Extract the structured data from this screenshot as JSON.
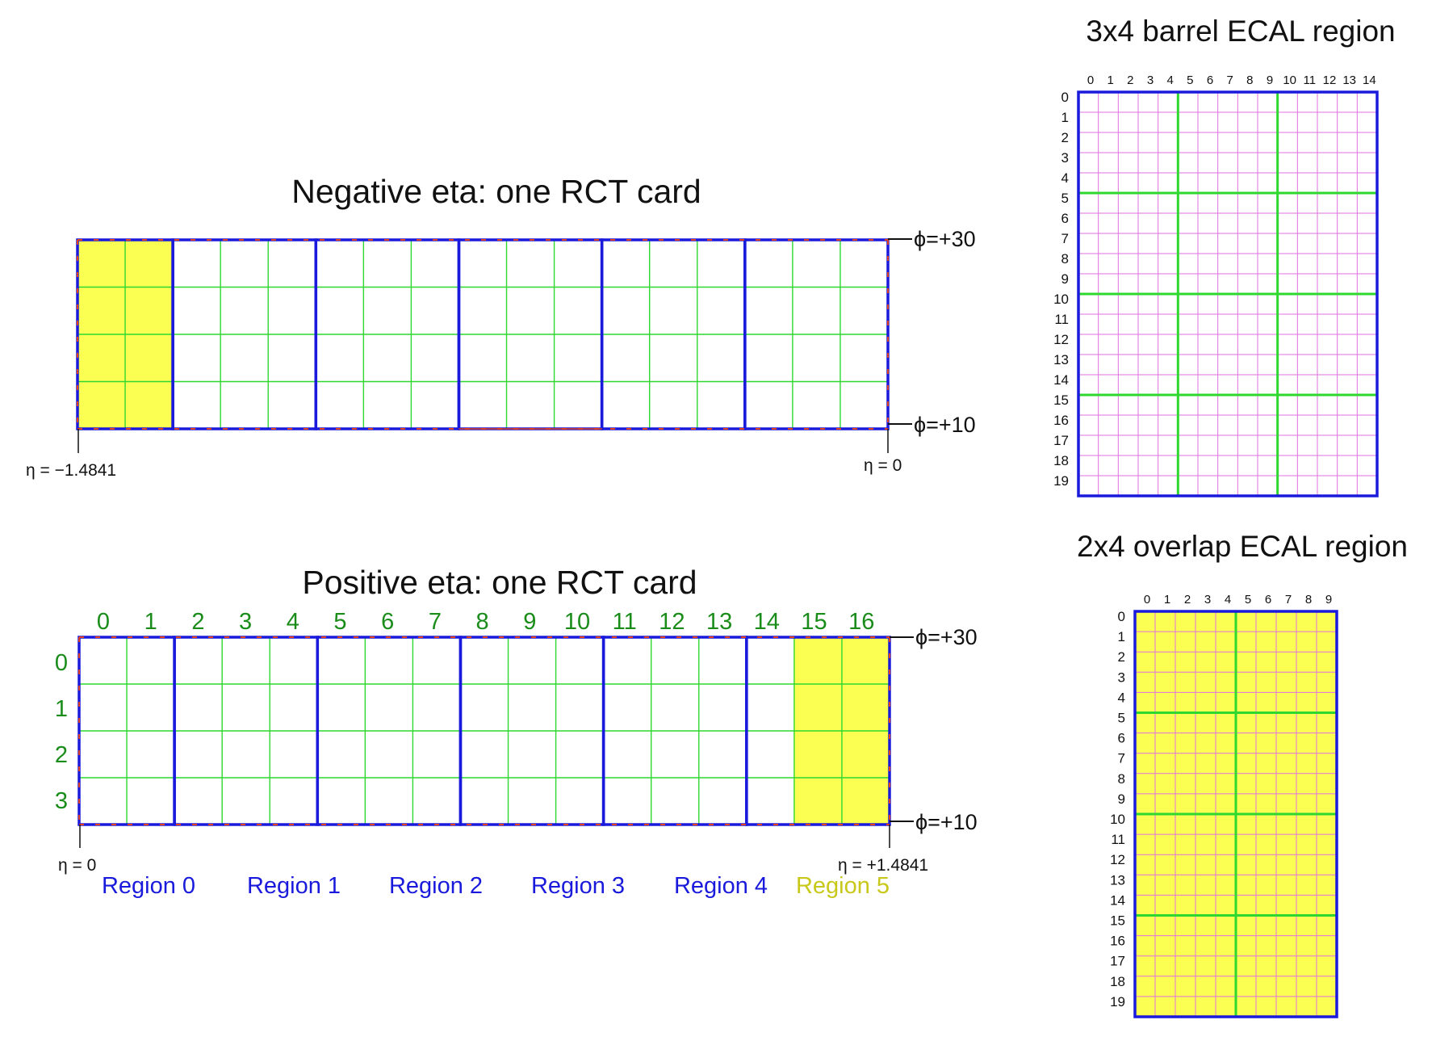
{
  "negative_card": {
    "title": "Negative eta: one RCT card",
    "phi_top": "ϕ=+30",
    "phi_bottom": "ϕ=+10",
    "eta_left": "η = −1.4841",
    "eta_right": "η = 0"
  },
  "positive_card": {
    "title": "Positive eta: one RCT card",
    "col_labels": [
      "0",
      "1",
      "2",
      "3",
      "4",
      "5",
      "6",
      "7",
      "8",
      "9",
      "10",
      "11",
      "12",
      "13",
      "14",
      "15",
      "16"
    ],
    "row_labels": [
      "0",
      "1",
      "2",
      "3"
    ],
    "phi_top": "ϕ=+30",
    "phi_bottom": "ϕ=+10",
    "eta_left": "η = 0",
    "eta_right": "η = +1.4841",
    "regions": [
      "Region 0",
      "Region 1",
      "Region 2",
      "Region 3",
      "Region 4",
      "Region 5"
    ]
  },
  "barrel_region": {
    "title": "3x4 barrel ECAL region",
    "col_labels": [
      "0",
      "1",
      "2",
      "3",
      "4",
      "5",
      "6",
      "7",
      "8",
      "9",
      "10",
      "11",
      "12",
      "13",
      "14"
    ],
    "row_labels": [
      "0",
      "1",
      "2",
      "3",
      "4",
      "5",
      "6",
      "7",
      "8",
      "9",
      "10",
      "11",
      "12",
      "13",
      "14",
      "15",
      "16",
      "17",
      "18",
      "19"
    ]
  },
  "overlap_region": {
    "title": "2x4 overlap ECAL region",
    "col_labels": [
      "0",
      "1",
      "2",
      "3",
      "4",
      "5",
      "6",
      "7",
      "8",
      "9"
    ],
    "row_labels": [
      "0",
      "1",
      "2",
      "3",
      "4",
      "5",
      "6",
      "7",
      "8",
      "9",
      "10",
      "11",
      "12",
      "13",
      "14",
      "15",
      "16",
      "17",
      "18",
      "19"
    ]
  },
  "colors": {
    "region_border": "#1a1adc",
    "tower_grid": "#2ed82e",
    "crystal_grid": "#e070e0",
    "highlight_fill": "#fbff52",
    "dash_red": "#e04020",
    "label_green": "#1a8c1a",
    "region5_label": "#c8c81a"
  }
}
